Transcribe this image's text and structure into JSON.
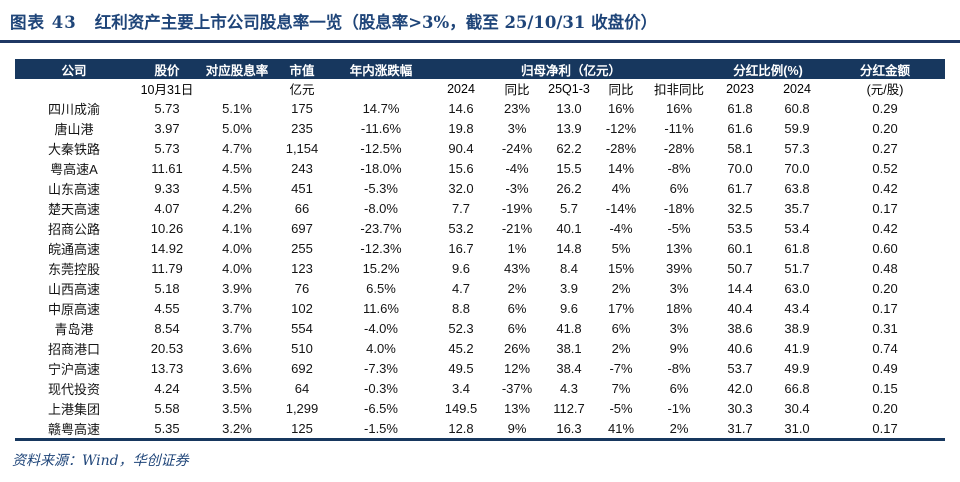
{
  "title": {
    "label": "图表 43",
    "text": "红利资产主要上市公司股息率一览（股息率>3%，截至 25/10/31 收盘价）"
  },
  "colors": {
    "header_bg": "#17375E",
    "title_blue": "#1F4579",
    "divider": "#1F3864",
    "header_text": "#FFFFFF",
    "body_text": "#141414"
  },
  "table": {
    "headers": {
      "company": "公司",
      "price": "股价",
      "yield": "对应股息率",
      "mktcap": "市值",
      "ytd": "年内涨跌幅",
      "profit_group": "归母净利（亿元）",
      "payout_group": "分红比例(%)",
      "amount": "分红金额"
    },
    "subheaders": {
      "price_date": "10月31日",
      "mktcap_unit": "亿元",
      "profit_2024": "2024",
      "yoy_1": "同比",
      "q1_3": "25Q1-3",
      "yoy_2": "同比",
      "deducted_yoy": "扣非同比",
      "payout_2023": "2023",
      "payout_2024": "2024",
      "amount_unit": "(元/股)"
    },
    "rows": [
      [
        "四川成渝",
        "5.73",
        "5.1%",
        "175",
        "14.7%",
        "14.6",
        "23%",
        "13.0",
        "16%",
        "16%",
        "61.8",
        "60.8",
        "0.29"
      ],
      [
        "唐山港",
        "3.97",
        "5.0%",
        "235",
        "-11.6%",
        "19.8",
        "3%",
        "13.9",
        "-12%",
        "-11%",
        "61.6",
        "59.9",
        "0.20"
      ],
      [
        "大秦铁路",
        "5.73",
        "4.7%",
        "1,154",
        "-12.5%",
        "90.4",
        "-24%",
        "62.2",
        "-28%",
        "-28%",
        "58.1",
        "57.3",
        "0.27"
      ],
      [
        "粤高速A",
        "11.61",
        "4.5%",
        "243",
        "-18.0%",
        "15.6",
        "-4%",
        "15.5",
        "14%",
        "-8%",
        "70.0",
        "70.0",
        "0.52"
      ],
      [
        "山东高速",
        "9.33",
        "4.5%",
        "451",
        "-5.3%",
        "32.0",
        "-3%",
        "26.2",
        "4%",
        "6%",
        "61.7",
        "63.8",
        "0.42"
      ],
      [
        "楚天高速",
        "4.07",
        "4.2%",
        "66",
        "-8.0%",
        "7.7",
        "-19%",
        "5.7",
        "-14%",
        "-18%",
        "32.5",
        "35.7",
        "0.17"
      ],
      [
        "招商公路",
        "10.26",
        "4.1%",
        "697",
        "-23.7%",
        "53.2",
        "-21%",
        "40.1",
        "-4%",
        "-5%",
        "53.5",
        "53.4",
        "0.42"
      ],
      [
        "皖通高速",
        "14.92",
        "4.0%",
        "255",
        "-12.3%",
        "16.7",
        "1%",
        "14.8",
        "5%",
        "13%",
        "60.1",
        "61.8",
        "0.60"
      ],
      [
        "东莞控股",
        "11.79",
        "4.0%",
        "123",
        "15.2%",
        "9.6",
        "43%",
        "8.4",
        "15%",
        "39%",
        "50.7",
        "51.7",
        "0.48"
      ],
      [
        "山西高速",
        "5.18",
        "3.9%",
        "76",
        "6.5%",
        "4.7",
        "2%",
        "3.9",
        "2%",
        "3%",
        "14.4",
        "63.0",
        "0.20"
      ],
      [
        "中原高速",
        "4.55",
        "3.7%",
        "102",
        "11.6%",
        "8.8",
        "6%",
        "9.6",
        "17%",
        "18%",
        "40.4",
        "43.4",
        "0.17"
      ],
      [
        "青岛港",
        "8.54",
        "3.7%",
        "554",
        "-4.0%",
        "52.3",
        "6%",
        "41.8",
        "6%",
        "3%",
        "38.6",
        "38.9",
        "0.31"
      ],
      [
        "招商港口",
        "20.53",
        "3.6%",
        "510",
        "4.0%",
        "45.2",
        "26%",
        "38.1",
        "2%",
        "9%",
        "40.6",
        "41.9",
        "0.74"
      ],
      [
        "宁沪高速",
        "13.73",
        "3.6%",
        "692",
        "-7.3%",
        "49.5",
        "12%",
        "38.4",
        "-7%",
        "-8%",
        "53.7",
        "49.9",
        "0.49"
      ],
      [
        "现代投资",
        "4.24",
        "3.5%",
        "64",
        "-0.3%",
        "3.4",
        "-37%",
        "4.3",
        "7%",
        "6%",
        "42.0",
        "66.8",
        "0.15"
      ],
      [
        "上港集团",
        "5.58",
        "3.5%",
        "1,299",
        "-6.5%",
        "149.5",
        "13%",
        "112.7",
        "-5%",
        "-1%",
        "30.3",
        "30.4",
        "0.20"
      ],
      [
        "赣粤高速",
        "5.35",
        "3.2%",
        "125",
        "-1.5%",
        "12.8",
        "9%",
        "16.3",
        "41%",
        "2%",
        "31.7",
        "31.0",
        "0.17"
      ]
    ]
  },
  "source": "资料来源：Wind，华创证券"
}
